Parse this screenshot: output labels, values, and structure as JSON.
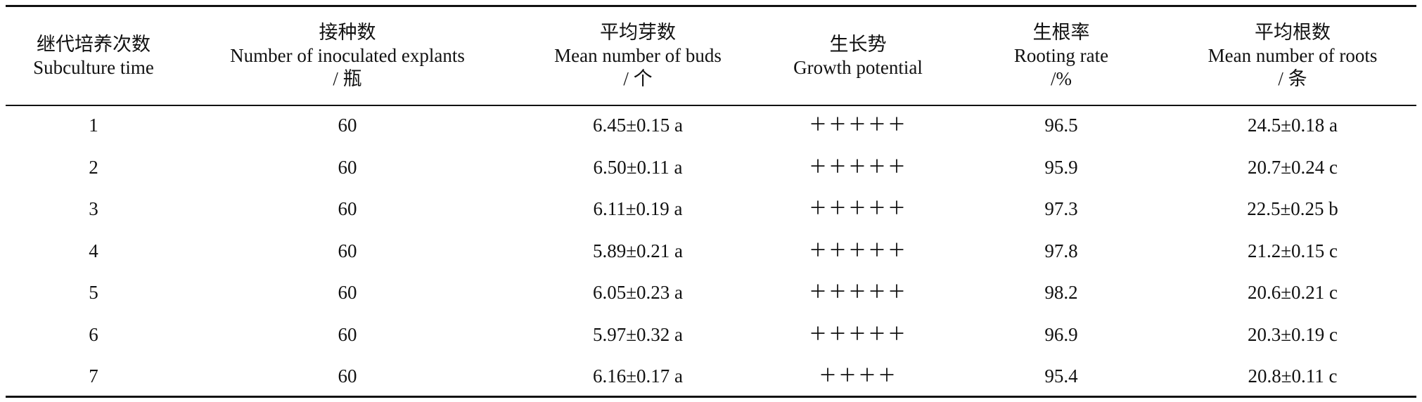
{
  "table": {
    "headers": [
      {
        "zh": "继代培养次数",
        "en": "Subculture time",
        "unit": ""
      },
      {
        "zh": "接种数",
        "en": "Number of inoculated explants",
        "unit": "/ 瓶"
      },
      {
        "zh": "平均芽数",
        "en": "Mean number of buds",
        "unit": "/ 个"
      },
      {
        "zh": "生长势",
        "en": "Growth potential",
        "unit": ""
      },
      {
        "zh": "生根率",
        "en": "Rooting rate",
        "unit": "/%"
      },
      {
        "zh": "平均根数",
        "en": "Mean number of roots",
        "unit": "/ 条"
      }
    ],
    "rows": [
      [
        "1",
        "60",
        "6.45±0.15 a",
        "＋＋＋＋＋",
        "96.5",
        "24.5±0.18 a"
      ],
      [
        "2",
        "60",
        "6.50±0.11 a",
        "＋＋＋＋＋",
        "95.9",
        "20.7±0.24 c"
      ],
      [
        "3",
        "60",
        "6.11±0.19 a",
        "＋＋＋＋＋",
        "97.3",
        "22.5±0.25 b"
      ],
      [
        "4",
        "60",
        "5.89±0.21 a",
        "＋＋＋＋＋",
        "97.8",
        "21.2±0.15 c"
      ],
      [
        "5",
        "60",
        "6.05±0.23 a",
        "＋＋＋＋＋",
        "98.2",
        "20.6±0.21 c"
      ],
      [
        "6",
        "60",
        "5.97±0.32 a",
        "＋＋＋＋＋",
        "96.9",
        "20.3±0.19 c"
      ],
      [
        "7",
        "60",
        "6.16±0.17 a",
        "＋＋＋＋",
        "95.4",
        "20.8±0.11 c"
      ]
    ]
  }
}
